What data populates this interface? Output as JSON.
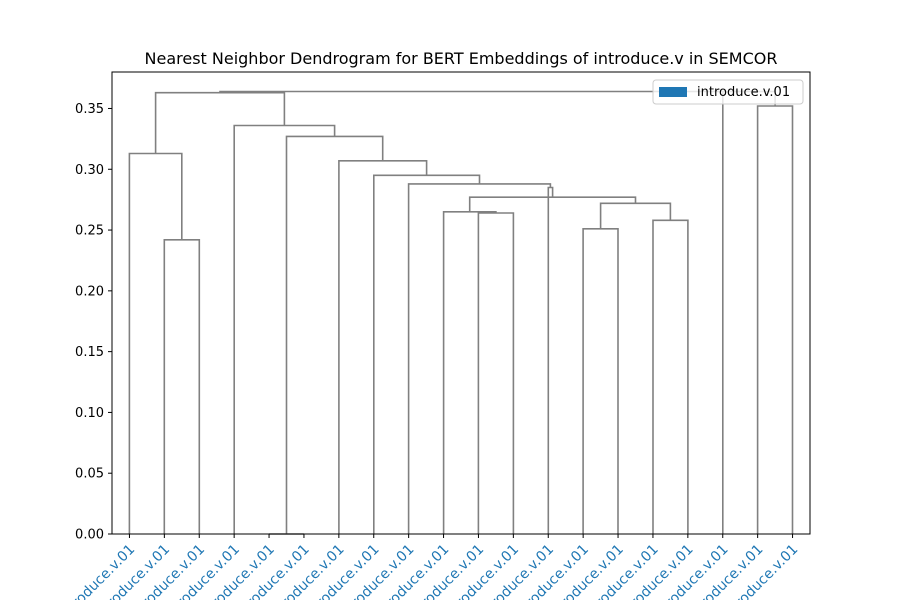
{
  "chart_data": {
    "type": "dendrogram",
    "title": "Nearest Neighbor Dendrogram for BERT Embeddings of introduce.v in SEMCOR",
    "xlabel": "",
    "ylabel": "",
    "ylim": [
      0,
      0.38
    ],
    "yticks": [
      "0.00",
      "0.05",
      "0.10",
      "0.15",
      "0.20",
      "0.25",
      "0.30",
      "0.35"
    ],
    "grid": false,
    "legend": {
      "placement": "top-right",
      "entries": [
        {
          "label": "introduce.v.01",
          "color": "#1f77b4"
        }
      ]
    },
    "link_color": "#808080",
    "leaf_label_color": "#1f77b4",
    "leaves": [
      "introduce.v.01",
      "introduce.v.01",
      "introduce.v.01",
      "introduce.v.01",
      "introduce.v.01",
      "introduce.v.01",
      "introduce.v.01",
      "introduce.v.01",
      "introduce.v.01",
      "introduce.v.01",
      "introduce.v.01",
      "introduce.v.01",
      "introduce.v.01",
      "introduce.v.01",
      "introduce.v.01",
      "introduce.v.01",
      "introduce.v.01",
      "introduce.v.01",
      "introduce.v.01",
      "introduce.v.01"
    ],
    "merges": [
      [
        1,
        2,
        0.242
      ],
      [
        0,
        20,
        0.313
      ],
      [
        4,
        5,
        0.0
      ],
      [
        10,
        11,
        0.264
      ],
      [
        9,
        23,
        0.265
      ],
      [
        13,
        14,
        0.251
      ],
      [
        15,
        16,
        0.258
      ],
      [
        25,
        26,
        0.272
      ],
      [
        24,
        27,
        0.277
      ],
      [
        12,
        28,
        0.285
      ],
      [
        8,
        29,
        0.288
      ],
      [
        7,
        30,
        0.295
      ],
      [
        6,
        31,
        0.307
      ],
      [
        22,
        32,
        0.327
      ],
      [
        18,
        19,
        0.352
      ],
      [
        3,
        33,
        0.336
      ],
      [
        21,
        35,
        0.363
      ],
      [
        17,
        34,
        0.364
      ],
      [
        36,
        37,
        0.364
      ]
    ]
  }
}
